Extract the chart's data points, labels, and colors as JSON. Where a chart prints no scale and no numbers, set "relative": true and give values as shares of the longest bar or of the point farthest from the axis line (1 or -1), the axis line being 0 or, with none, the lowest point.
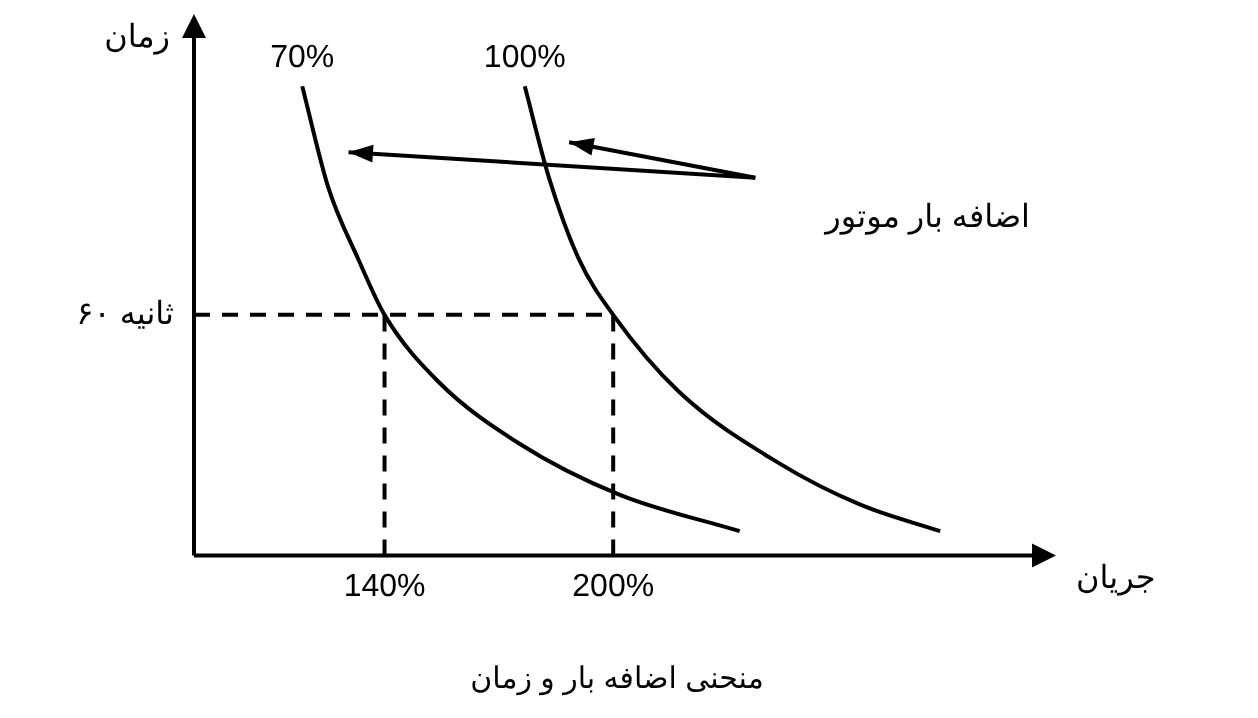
{
  "chart_data": {
    "type": "line",
    "title": "منحنی اضافه بار و زمان",
    "xlabel": "جریان",
    "ylabel": "زمان",
    "relative": true,
    "x": [
      118.4,
      125.3,
      133.2,
      140,
      154.2,
      175.3,
      201.6,
      233.2
    ],
    "xlim": [
      90,
      312
    ],
    "xticks": [
      {
        "value": 140,
        "label": "140%"
      },
      {
        "value": 200,
        "label": "200%"
      }
    ],
    "series": [
      {
        "name": "70%",
        "color": "#000000",
        "values": [
          1,
          0.783,
          0.63,
          0.513,
          0.37,
          0.239,
          0.13,
          0.052
        ]
      },
      {
        "name": "100%",
        "color": "#000000",
        "x": [
          176.8,
          183.2,
          191.1,
          200,
          217.4,
          243.7,
          264.7,
          285.8
        ],
        "values": [
          1,
          0.804,
          0.63,
          0.513,
          0.348,
          0.196,
          0.109,
          0.052
        ]
      }
    ],
    "ref_lines": [
      {
        "axis": "y",
        "value": 0.513,
        "label": "۶۰ ثانیه",
        "line_style": "dashed",
        "color": "#000000"
      },
      {
        "axis": "x",
        "value": 140,
        "line_style": "dashed",
        "color": "#000000"
      },
      {
        "axis": "x",
        "value": 200,
        "line_style": "dashed",
        "color": "#000000"
      }
    ],
    "annotations": [
      "اضافه بار موتور"
    ],
    "grid": false,
    "legend": false,
    "marker": "none",
    "line_style": "solid"
  }
}
